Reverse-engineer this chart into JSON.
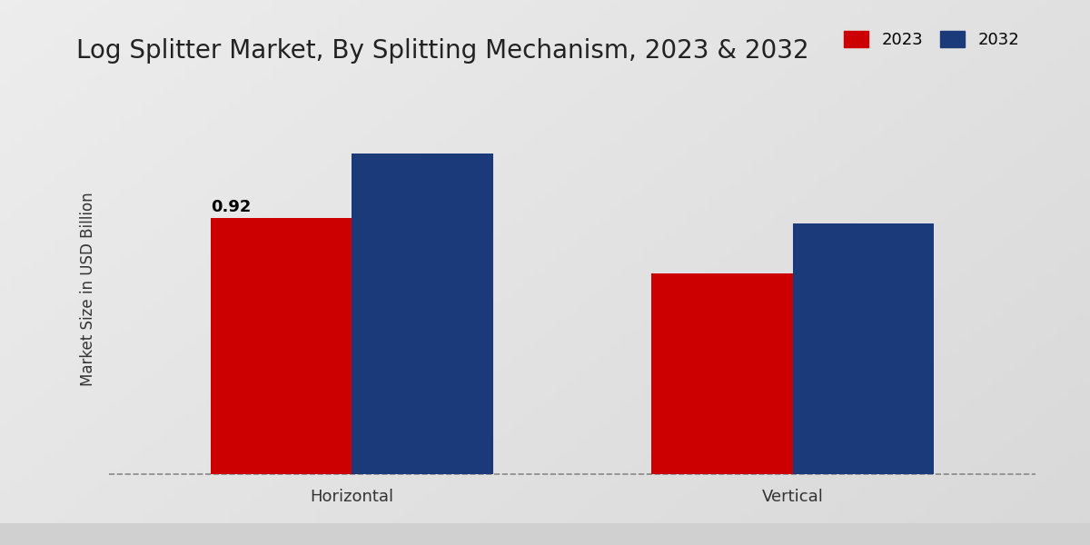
{
  "title": "Log Splitter Market, By Splitting Mechanism, 2023 & 2032",
  "ylabel": "Market Size in USD Billion",
  "categories": [
    "Horizontal",
    "Vertical"
  ],
  "values_2023": [
    0.92,
    0.72
  ],
  "values_2032": [
    1.15,
    0.9
  ],
  "bar_color_2023": "#cc0000",
  "bar_color_2032": "#1a3a7a",
  "annotation_value": "0.92",
  "bar_width": 0.32,
  "title_fontsize": 20,
  "legend_labels": [
    "2023",
    "2032"
  ],
  "ylabel_fontsize": 12,
  "bottom_strip_color": "#c0392b",
  "gradient_left": "#d8d8d8",
  "gradient_right": "#c0c0c0",
  "gradient_top": "#f0f0f0"
}
